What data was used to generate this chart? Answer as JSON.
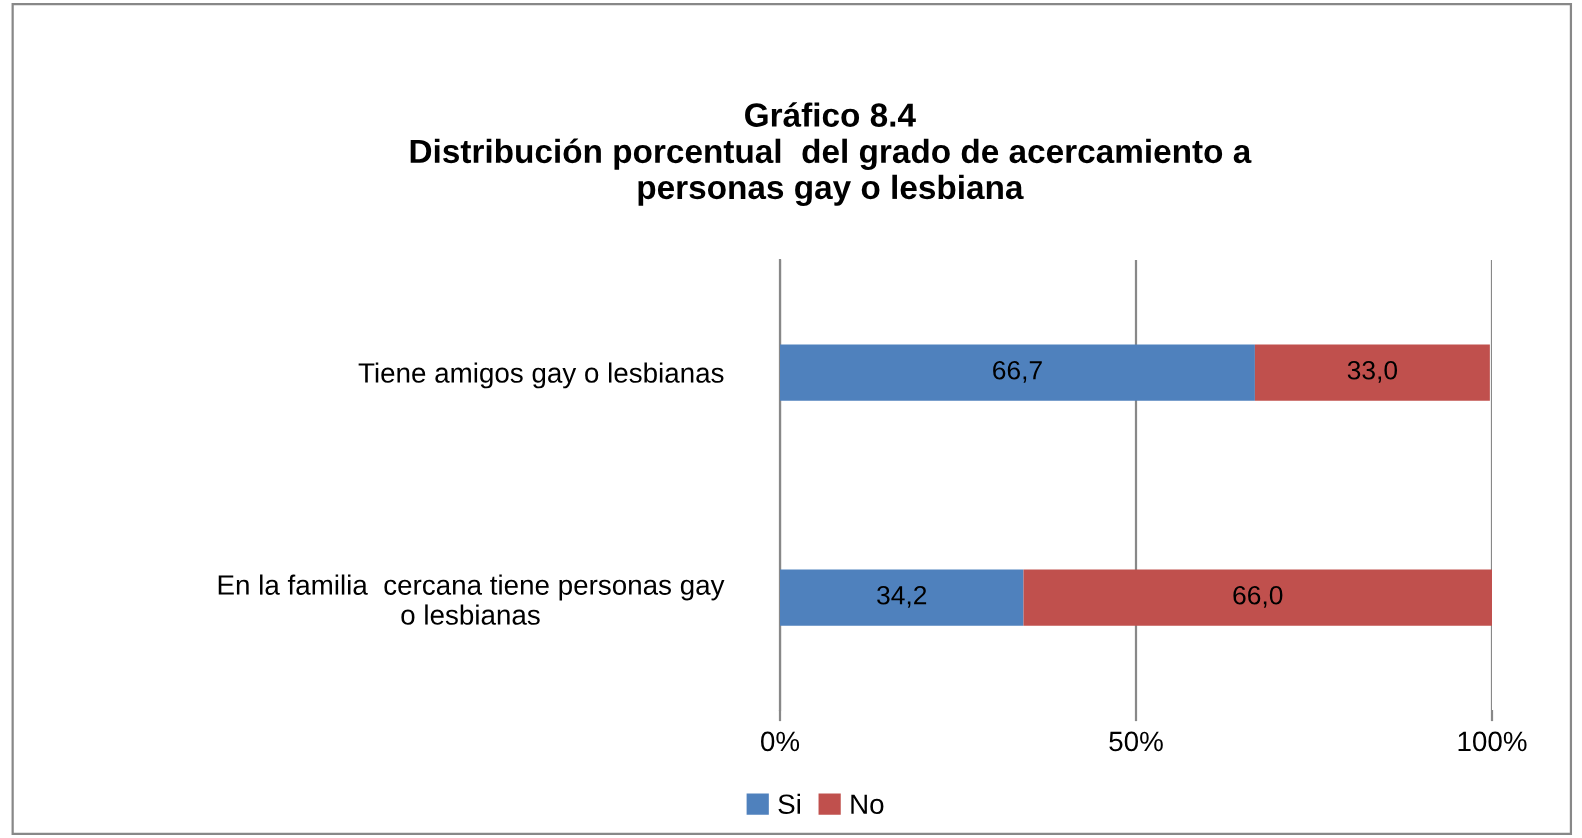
{
  "chart_data": {
    "type": "bar",
    "orientation": "horizontal",
    "stacked": true,
    "title": "Gráfico 8.4\nDistribución porcentual  del grado de acercamiento a\npersonas gay o lesbiana",
    "categories": [
      "Tiene amigos gay o lesbianas",
      "En la familia  cercana tiene personas gay\no lesbianas"
    ],
    "series": [
      {
        "name": "Si",
        "color": "#4f81bd",
        "values": [
          66.7,
          34.2
        ],
        "value_labels": [
          "66,7",
          "34,2"
        ]
      },
      {
        "name": "No",
        "color": "#c0504d",
        "values": [
          33.0,
          66.0
        ],
        "value_labels": [
          "33,0",
          "66,0"
        ]
      }
    ],
    "xlim": [
      0,
      100
    ],
    "xticks": [
      {
        "value": 0,
        "label": "0%"
      },
      {
        "value": 50,
        "label": "50%"
      },
      {
        "value": 100,
        "label": "100%"
      }
    ],
    "grid": "x",
    "legend": "bottom"
  }
}
